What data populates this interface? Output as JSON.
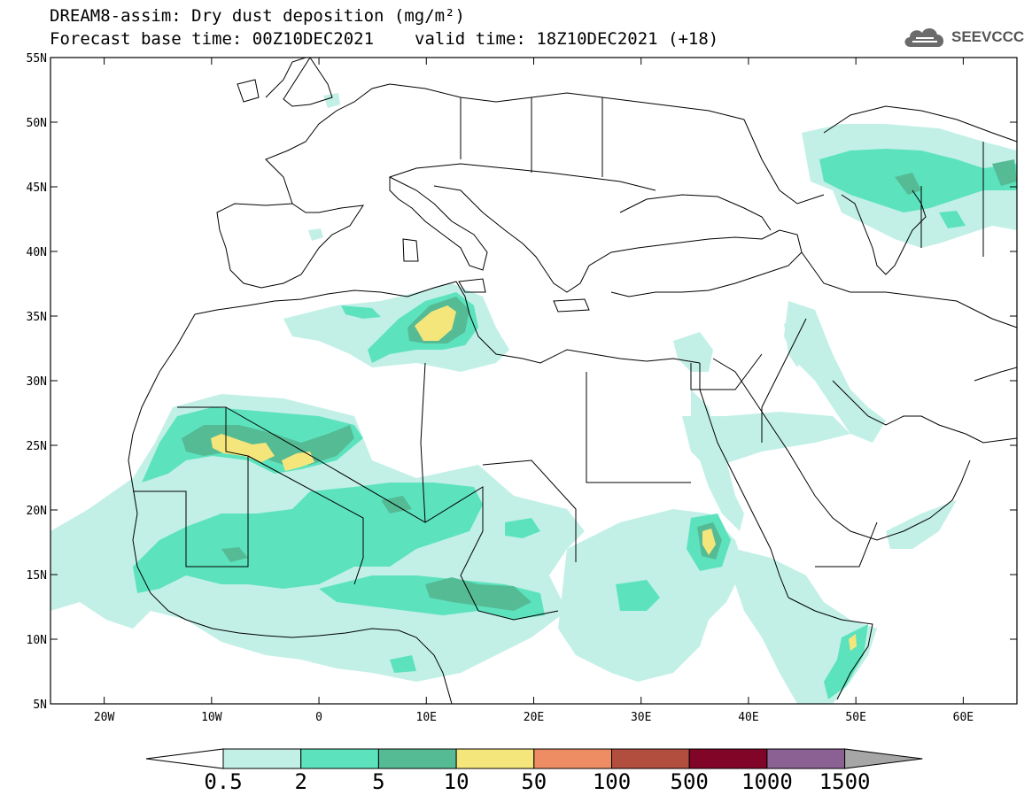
{
  "title": {
    "line1": "DREAM8-assim: Dry dust deposition (mg/m²)",
    "line2_left": "Forecast base time: 00Z10DEC2021",
    "line2_right": "valid time: 18Z10DEC2021 (+18)"
  },
  "logo": {
    "text": "SEEVCCC",
    "icon": "cloud-icon"
  },
  "map": {
    "lat_ticks": [
      "55N",
      "50N",
      "45N",
      "40N",
      "35N",
      "30N",
      "25N",
      "20N",
      "15N",
      "10N",
      "5N"
    ],
    "lon_ticks": [
      "20W",
      "10W",
      "0",
      "10E",
      "20E",
      "30E",
      "40E",
      "50E",
      "60E"
    ],
    "lon_range": [
      -25,
      65
    ],
    "lat_range": [
      5,
      55
    ]
  },
  "colorbar": {
    "labels": [
      "0.5",
      "2",
      "5",
      "10",
      "50",
      "100",
      "500",
      "1000",
      "1500"
    ],
    "colors": [
      "#c2f0e7",
      "#5ce3bd",
      "#55bb95",
      "#f5e67c",
      "#ee8d63",
      "#b14e3e",
      "#800527",
      "#8b6193",
      "#a6a6a6"
    ],
    "below_color": "#ffffff"
  },
  "levels": {
    "l1": "#c2f0e7",
    "l2": "#5ce3bd",
    "l3": "#55bb95",
    "l4": "#f5e67c"
  }
}
